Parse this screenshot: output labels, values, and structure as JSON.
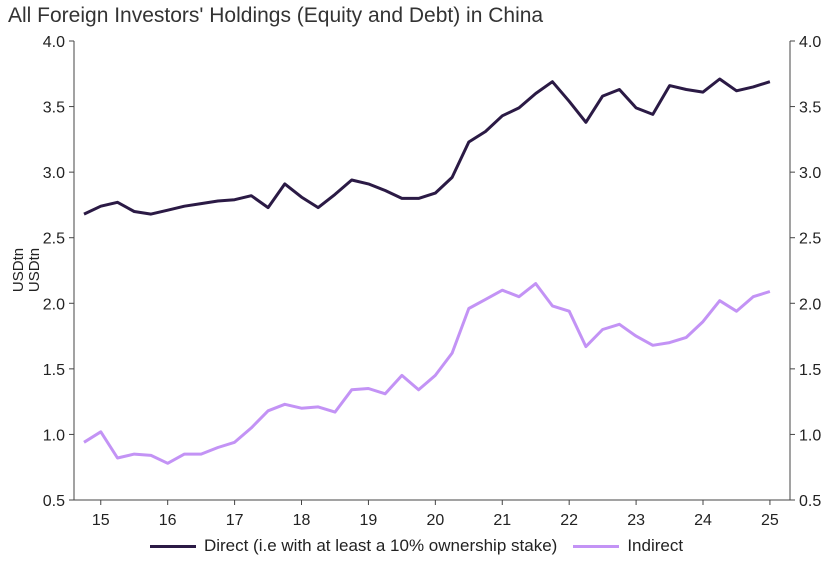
{
  "chart_data": {
    "type": "line",
    "title": "All Foreign Investors' Holdings (Equity and Debt) in China",
    "ylabel": "USDtn",
    "ylabel_secondary": "USDtn",
    "ylim": [
      0.5,
      4.0
    ],
    "yticks": [
      "0.5",
      "1.0",
      "1.5",
      "2.0",
      "2.5",
      "3.0",
      "3.5",
      "4.0"
    ],
    "xlim": [
      2014.6,
      2025.3
    ],
    "xticks": [
      "15",
      "16",
      "17",
      "18",
      "19",
      "20",
      "21",
      "22",
      "23",
      "24",
      "25"
    ],
    "legend_position": "bottom",
    "grid": false,
    "x": [
      2014.75,
      2015.0,
      2015.25,
      2015.5,
      2015.75,
      2016.0,
      2016.25,
      2016.5,
      2016.75,
      2017.0,
      2017.25,
      2017.5,
      2017.75,
      2018.0,
      2018.25,
      2018.5,
      2018.75,
      2019.0,
      2019.25,
      2019.5,
      2019.75,
      2020.0,
      2020.25,
      2020.5,
      2020.75,
      2021.0,
      2021.25,
      2021.5,
      2021.75,
      2022.0,
      2022.25,
      2022.5,
      2022.75,
      2023.0,
      2023.25,
      2023.5,
      2023.75,
      2024.0,
      2024.25,
      2024.5,
      2024.75,
      2025.0
    ],
    "series": [
      {
        "name": "Direct (i.e with at least a 10% ownership stake)",
        "color": "#2b1a45",
        "values": [
          2.68,
          2.74,
          2.77,
          2.7,
          2.68,
          2.71,
          2.74,
          2.76,
          2.78,
          2.79,
          2.82,
          2.73,
          2.91,
          2.81,
          2.73,
          2.83,
          2.94,
          2.91,
          2.86,
          2.8,
          2.8,
          2.84,
          2.96,
          3.23,
          3.31,
          3.43,
          3.49,
          3.6,
          3.69,
          3.54,
          3.38,
          3.58,
          3.63,
          3.49,
          3.44,
          3.66,
          3.63,
          3.61,
          3.71,
          3.62,
          3.65,
          3.69
        ]
      },
      {
        "name": "Indirect",
        "color": "#c393f5",
        "values": [
          0.94,
          1.02,
          0.82,
          0.85,
          0.84,
          0.78,
          0.85,
          0.85,
          0.9,
          0.94,
          1.05,
          1.18,
          1.23,
          1.2,
          1.21,
          1.17,
          1.34,
          1.35,
          1.31,
          1.45,
          1.34,
          1.45,
          1.62,
          1.96,
          2.03,
          2.1,
          2.05,
          2.15,
          1.98,
          1.94,
          1.67,
          1.8,
          1.84,
          1.75,
          1.68,
          1.7,
          1.74,
          1.86,
          2.02,
          1.94,
          2.05,
          2.09
        ]
      }
    ]
  }
}
